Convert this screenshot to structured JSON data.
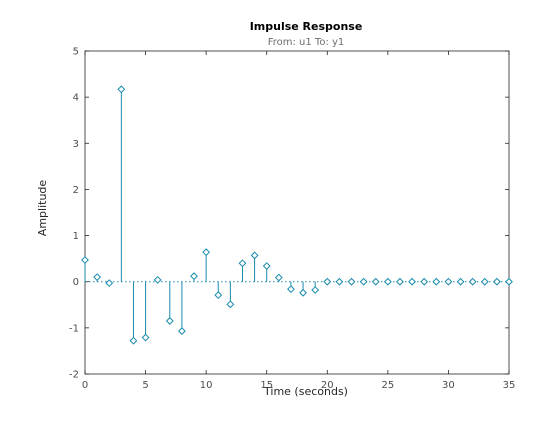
{
  "colors": {
    "stem": "#1a8bad",
    "marker": "#1a8bad",
    "axis": "#262626",
    "baseline": "#1a8bad",
    "background": "#ffffff"
  },
  "chart_data": {
    "type": "stem",
    "title": "Impulse Response",
    "subtitle": "From: u1  To: y1",
    "xlabel": "Time (seconds)",
    "ylabel": "Amplitude",
    "xlim": [
      0,
      35
    ],
    "ylim": [
      -2,
      5
    ],
    "xticks": [
      0,
      5,
      10,
      15,
      20,
      25,
      30,
      35
    ],
    "yticks": [
      -2,
      -1,
      0,
      1,
      2,
      3,
      4,
      5
    ],
    "marker": "diamond",
    "baseline": 0,
    "grid": false,
    "x": [
      0,
      1,
      2,
      3,
      4,
      5,
      6,
      7,
      8,
      9,
      10,
      11,
      12,
      13,
      14,
      15,
      16,
      17,
      18,
      19,
      20,
      21,
      22,
      23,
      24,
      25,
      26,
      27,
      28,
      29,
      30,
      31,
      32,
      33,
      34,
      35
    ],
    "y": [
      0.47,
      0.1,
      -0.03,
      4.17,
      -1.28,
      -1.21,
      0.04,
      -0.85,
      -1.07,
      0.12,
      0.64,
      -0.29,
      -0.49,
      0.4,
      0.57,
      0.34,
      0.09,
      -0.16,
      -0.24,
      -0.18,
      0.0,
      0.0,
      0.0,
      0.0,
      0.0,
      0.0,
      0.0,
      0.0,
      0.0,
      0.0,
      0.0,
      0.0,
      0.0,
      0.0,
      0.0,
      0.0
    ]
  }
}
